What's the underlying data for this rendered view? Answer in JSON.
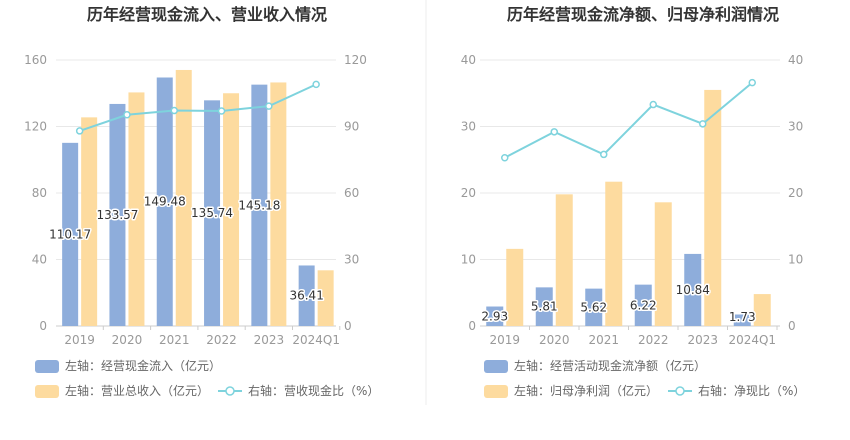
{
  "colors": {
    "bar_blue": "#8EADDB",
    "bar_orange": "#FDDB9F",
    "line_teal": "#7ED3DD",
    "axis_text": "#999999",
    "grid": "#E8E8E8",
    "title": "#333333"
  },
  "chart_data": [
    {
      "type": "bar",
      "title": "历年经营现金流入、营业收入情况",
      "categories": [
        "2019",
        "2020",
        "2021",
        "2022",
        "2023",
        "2024Q1"
      ],
      "ylim_left": [
        0,
        160
      ],
      "ylim_right": [
        0,
        120
      ],
      "yticks_left": [
        0,
        40,
        80,
        120,
        160
      ],
      "yticks_right": [
        0,
        30,
        60,
        90,
        120
      ],
      "grid": true,
      "legend_placement": "bottom-left",
      "series": [
        {
          "name": "左轴：经营现金流入（亿元）",
          "type": "bar",
          "axis": "left",
          "color": "#8EADDB",
          "values": [
            110.17,
            133.57,
            149.48,
            135.74,
            145.18,
            36.41
          ],
          "labels": [
            "110.17",
            "133.57",
            "149.48",
            "135.74",
            "145.18",
            "36.41"
          ]
        },
        {
          "name": "左轴：营业总收入（亿元）",
          "type": "bar",
          "axis": "left",
          "color": "#FDDB9F",
          "values": [
            125.5,
            140.5,
            154.0,
            140.0,
            146.5,
            33.5
          ]
        },
        {
          "name": "右轴：营收现金比（%）",
          "type": "line",
          "axis": "right",
          "color": "#7ED3DD",
          "values": [
            88.0,
            95.3,
            97.2,
            97.0,
            99.2,
            109.0
          ]
        }
      ]
    },
    {
      "type": "bar",
      "title": "历年经营现金流净额、归母净利润情况",
      "categories": [
        "2019",
        "2020",
        "2021",
        "2022",
        "2023",
        "2024Q1"
      ],
      "ylim_left": [
        0,
        40
      ],
      "ylim_right": [
        0,
        40
      ],
      "yticks_left": [
        0,
        10,
        20,
        30,
        40
      ],
      "yticks_right": [
        0,
        10,
        20,
        30,
        40
      ],
      "grid": true,
      "legend_placement": "bottom-left",
      "series": [
        {
          "name": "左轴：经营活动现金流净额（亿元）",
          "type": "bar",
          "axis": "left",
          "color": "#8EADDB",
          "values": [
            2.93,
            5.81,
            5.62,
            6.22,
            10.84,
            1.73
          ],
          "labels": [
            "2.93",
            "5.81",
            "5.62",
            "6.22",
            "10.84",
            "1.73"
          ]
        },
        {
          "name": "左轴：归母净利润（亿元）",
          "type": "bar",
          "axis": "left",
          "color": "#FDDB9F",
          "values": [
            11.6,
            19.8,
            21.7,
            18.6,
            35.5,
            4.8
          ]
        },
        {
          "name": "右轴：净现比（%）",
          "type": "line",
          "axis": "right",
          "color": "#7ED3DD",
          "values": [
            25.3,
            29.2,
            25.8,
            33.3,
            30.4,
            36.6
          ]
        }
      ]
    }
  ]
}
